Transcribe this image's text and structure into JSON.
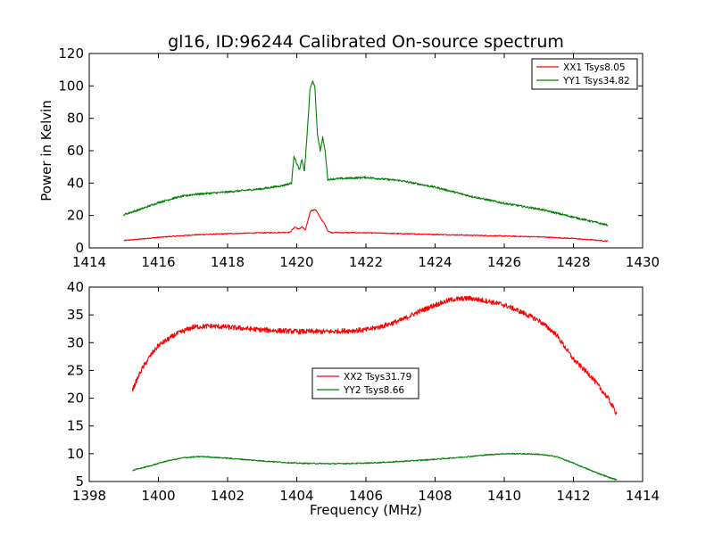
{
  "chart_data": [
    {
      "type": "line",
      "title": "gl16, ID:96244 Calibrated On-source spectrum",
      "xlabel": "",
      "ylabel": "Power in Kelvin",
      "xlim": [
        1414,
        1430
      ],
      "ylim": [
        0,
        120
      ],
      "xticks": [
        "1414",
        "1416",
        "1418",
        "1420",
        "1422",
        "1424",
        "1426",
        "1428",
        "1430"
      ],
      "yticks": [
        "0",
        "20",
        "40",
        "60",
        "80",
        "100",
        "120"
      ],
      "legend": "top-right",
      "grid": false,
      "series": [
        {
          "name": "XX1 Tsys8.05",
          "color": "#ff0000",
          "x": [
            1415.0,
            1416.0,
            1417.0,
            1418.0,
            1419.0,
            1419.8,
            1419.95,
            1420.05,
            1420.15,
            1420.25,
            1420.4,
            1420.55,
            1420.7,
            1420.8,
            1420.9,
            1421.0,
            1422.0,
            1423.0,
            1424.0,
            1425.0,
            1426.0,
            1427.0,
            1428.0,
            1429.0
          ],
          "y": [
            4.5,
            6.5,
            8.0,
            8.8,
            9.3,
            9.6,
            13.0,
            11.5,
            13.0,
            11.0,
            23.0,
            23.5,
            18.0,
            15.0,
            10.5,
            9.5,
            9.3,
            8.8,
            8.3,
            7.8,
            7.3,
            6.8,
            5.8,
            4.2
          ],
          "noise": 0.3
        },
        {
          "name": "YY1 Tsys34.82",
          "color": "#008000",
          "x": [
            1415.0,
            1415.5,
            1416.0,
            1416.5,
            1417.0,
            1418.0,
            1419.0,
            1419.6,
            1419.85,
            1419.92,
            1420.0,
            1420.08,
            1420.15,
            1420.22,
            1420.3,
            1420.38,
            1420.45,
            1420.52,
            1420.6,
            1420.68,
            1420.75,
            1420.82,
            1420.9,
            1421.0,
            1422.0,
            1423.0,
            1424.0,
            1425.0,
            1426.0,
            1427.0,
            1428.0,
            1429.0
          ],
          "y": [
            20.5,
            24.0,
            28.0,
            31.0,
            33.0,
            34.5,
            36.5,
            38.5,
            40.0,
            57.0,
            52.0,
            48.0,
            55.0,
            47.0,
            70.0,
            97.0,
            103.0,
            100.0,
            70.0,
            60.0,
            68.0,
            60.0,
            42.0,
            42.5,
            43.5,
            41.5,
            37.5,
            32.0,
            27.5,
            24.0,
            19.0,
            14.0
          ],
          "noise": 0.6
        }
      ]
    },
    {
      "type": "line",
      "title": "",
      "xlabel": "Frequency (MHz)",
      "ylabel": "",
      "xlim": [
        1398,
        1414
      ],
      "ylim": [
        5,
        40
      ],
      "xticks": [
        "1398",
        "1400",
        "1402",
        "1404",
        "1406",
        "1408",
        "1410",
        "1412",
        "1414"
      ],
      "yticks": [
        "5",
        "10",
        "15",
        "20",
        "25",
        "30",
        "35",
        "40"
      ],
      "legend": "center",
      "grid": false,
      "series": [
        {
          "name": "XX2 Tsys31.79",
          "color": "#ff0000",
          "x": [
            1399.25,
            1399.5,
            1399.75,
            1400.0,
            1400.5,
            1401.0,
            1401.5,
            1402.0,
            1403.0,
            1404.0,
            1405.0,
            1406.0,
            1406.5,
            1407.0,
            1407.5,
            1408.0,
            1408.5,
            1409.0,
            1409.5,
            1410.0,
            1410.5,
            1411.0,
            1411.5,
            1412.0,
            1412.5,
            1413.0,
            1413.25
          ],
          "y": [
            21.5,
            25.0,
            27.5,
            29.5,
            31.5,
            32.8,
            33.0,
            32.8,
            32.3,
            32.0,
            32.0,
            32.3,
            33.0,
            34.0,
            35.5,
            36.8,
            37.8,
            38.0,
            37.5,
            36.8,
            35.5,
            34.0,
            31.5,
            27.0,
            24.0,
            20.0,
            17.2
          ],
          "noise": 0.45
        },
        {
          "name": "YY2 Tsys8.66",
          "color": "#008000",
          "x": [
            1399.25,
            1399.75,
            1400.25,
            1400.75,
            1401.25,
            1402.0,
            1403.0,
            1404.0,
            1405.0,
            1406.0,
            1407.0,
            1408.0,
            1409.0,
            1409.5,
            1410.0,
            1410.5,
            1411.0,
            1411.5,
            1412.0,
            1412.5,
            1413.0,
            1413.25
          ],
          "y": [
            7.0,
            7.8,
            8.7,
            9.3,
            9.5,
            9.2,
            8.7,
            8.3,
            8.2,
            8.3,
            8.6,
            9.0,
            9.5,
            9.8,
            10.0,
            10.0,
            9.9,
            9.5,
            8.3,
            7.0,
            5.8,
            5.3
          ],
          "noise": 0.1
        }
      ]
    }
  ]
}
